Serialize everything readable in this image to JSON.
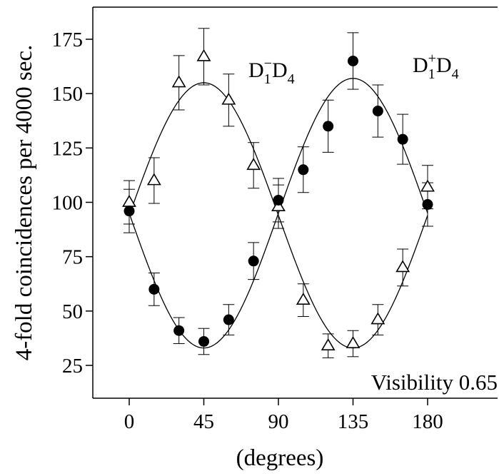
{
  "chart_data": {
    "type": "scatter",
    "title": "",
    "xlabel": "(degrees)",
    "ylabel": "4-fold coincidences per 4000 sec.",
    "xlim": [
      -10,
      194
    ],
    "ylim": [
      10,
      185
    ],
    "xticks": [
      0,
      45,
      90,
      135,
      180
    ],
    "yticks": [
      25,
      50,
      75,
      100,
      125,
      150,
      175
    ],
    "grid": false,
    "legend": "none",
    "annotation": "Visibility 0.65",
    "series": [
      {
        "label_main": "D",
        "label_sub1": "1",
        "label_sign": "−",
        "label_rest": "D",
        "label_sub2": "4",
        "marker": "open-triangle",
        "x": [
          0,
          15,
          30,
          45,
          60,
          75,
          90,
          105,
          120,
          135,
          150,
          165,
          180
        ],
        "y": [
          100,
          110,
          155,
          167,
          147,
          117,
          98,
          55,
          34,
          35,
          46,
          70,
          107
        ],
        "err": [
          10,
          10.5,
          12.5,
          13,
          12,
          10.5,
          10,
          7.5,
          5.5,
          6,
          7,
          8.5,
          10
        ],
        "fit": {
          "mean": 95,
          "amplitude": 62,
          "phase_deg": 0,
          "sign": -1
        }
      },
      {
        "label_main": "D",
        "label_sub1": "1",
        "label_sign": "+",
        "label_rest": "D",
        "label_sub2": "4",
        "marker": "filled-circle",
        "x": [
          0,
          15,
          30,
          45,
          60,
          75,
          90,
          105,
          120,
          135,
          150,
          165,
          180
        ],
        "y": [
          96,
          60,
          41,
          36,
          46,
          73,
          101,
          115,
          135,
          165,
          142,
          129,
          99
        ],
        "err": [
          10,
          7.5,
          6,
          6,
          7,
          8.5,
          10,
          10.5,
          12,
          13,
          12,
          11.5,
          10
        ],
        "fit": {
          "mean": 94,
          "amplitude": 61,
          "phase_deg": 0,
          "sign": 1
        }
      }
    ]
  }
}
